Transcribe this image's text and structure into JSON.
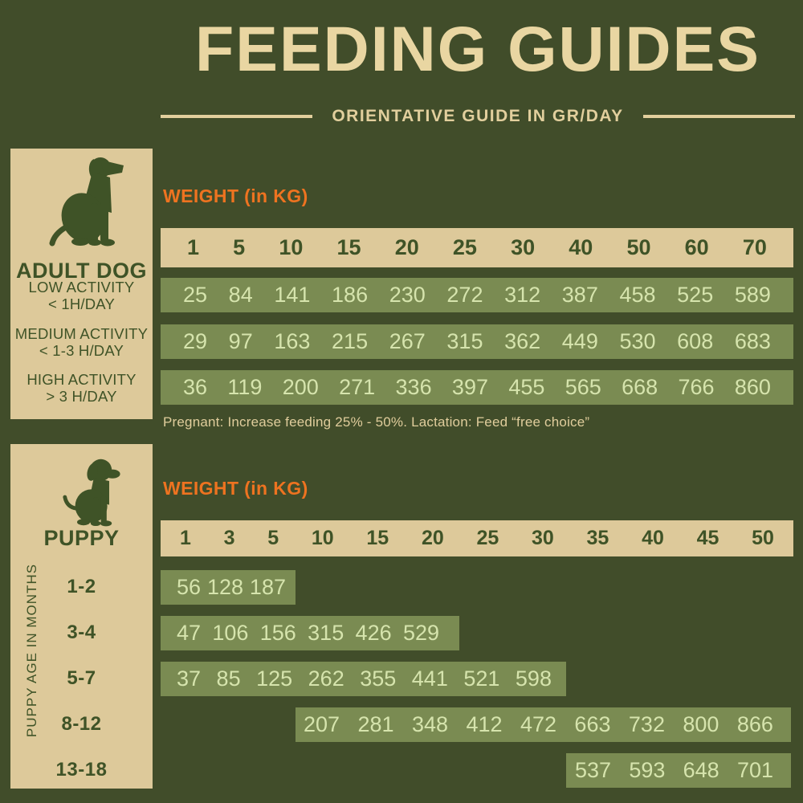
{
  "header": {
    "title": "FEEDING GUIDES",
    "subtitle": "ORIENTATIVE GUIDE IN GR/DAY"
  },
  "colors": {
    "background": "#414d2a",
    "cream_panel": "#ddc99a",
    "title_cream": "#e9d6a2",
    "orange_accent": "#ee7320",
    "row_green": "#7a8b52",
    "dark_green_text": "#3f5327",
    "pale_green_text": "#d6e4ad"
  },
  "adult": {
    "panel_title": "ADULT DOG",
    "icon": "adult-dog-silhouette",
    "weight_label": "WEIGHT (in KG)",
    "weights": [
      "1",
      "5",
      "10",
      "15",
      "20",
      "25",
      "30",
      "40",
      "50",
      "60",
      "70"
    ],
    "rows": [
      {
        "label": "LOW ACTIVITY\n< 1H/DAY",
        "values": [
          "25",
          "84",
          "141",
          "186",
          "230",
          "272",
          "312",
          "387",
          "458",
          "525",
          "589"
        ]
      },
      {
        "label": "MEDIUM ACTIVITY\n< 1-3 H/DAY",
        "values": [
          "29",
          "97",
          "163",
          "215",
          "267",
          "315",
          "362",
          "449",
          "530",
          "608",
          "683"
        ]
      },
      {
        "label": "HIGH ACTIVITY\n> 3 H/DAY",
        "values": [
          "36",
          "119",
          "200",
          "271",
          "336",
          "397",
          "455",
          "565",
          "668",
          "766",
          "860"
        ]
      }
    ],
    "note": "Pregnant: Increase feeding 25% - 50%. Lactation: Feed “free choice”"
  },
  "puppy": {
    "panel_title": "PUPPY",
    "icon": "puppy-silhouette",
    "axis_label": "PUPPY AGE IN MONTHS",
    "weight_label": "WEIGHT (in KG)",
    "weights": [
      "1",
      "3",
      "5",
      "10",
      "15",
      "20",
      "25",
      "30",
      "35",
      "40",
      "45",
      "50"
    ],
    "rows": [
      {
        "age_label": "1-2",
        "values": [
          "56",
          "128",
          "187"
        ]
      },
      {
        "age_label": "3-4",
        "values": [
          "47",
          "106",
          "156",
          "315",
          "426",
          "529"
        ]
      },
      {
        "age_label": "5-7",
        "values": [
          "37",
          "85",
          "125",
          "262",
          "355",
          "441",
          "521",
          "598"
        ]
      },
      {
        "age_label": "8-12",
        "values": [
          "207",
          "281",
          "348",
          "412",
          "472",
          "663",
          "732",
          "800",
          "866"
        ]
      },
      {
        "age_label": "13-18",
        "values": [
          "537",
          "593",
          "648",
          "701"
        ]
      }
    ]
  },
  "chart_data": [
    {
      "type": "table",
      "title": "ADULT DOG feeding guide (gr/day)",
      "xlabel": "WEIGHT (in KG)",
      "columns": [
        1,
        5,
        10,
        15,
        20,
        25,
        30,
        40,
        50,
        60,
        70
      ],
      "rows": [
        {
          "name": "LOW ACTIVITY < 1H/DAY",
          "values": [
            25,
            84,
            141,
            186,
            230,
            272,
            312,
            387,
            458,
            525,
            589
          ]
        },
        {
          "name": "MEDIUM ACTIVITY < 1-3 H/DAY",
          "values": [
            29,
            97,
            163,
            215,
            267,
            315,
            362,
            449,
            530,
            608,
            683
          ]
        },
        {
          "name": "HIGH ACTIVITY > 3 H/DAY",
          "values": [
            36,
            119,
            200,
            271,
            336,
            397,
            455,
            565,
            668,
            766,
            860
          ]
        }
      ],
      "note": "Pregnant: Increase feeding 25% - 50%. Lactation: Feed “free choice”"
    },
    {
      "type": "table",
      "title": "PUPPY feeding guide (gr/day)",
      "xlabel": "WEIGHT (in KG)",
      "ylabel": "PUPPY AGE IN MONTHS",
      "columns": [
        1,
        3,
        5,
        10,
        15,
        20,
        25,
        30,
        35,
        40,
        45,
        50
      ],
      "rows": [
        {
          "name": "1-2",
          "start_weight": 1,
          "values": [
            56,
            128,
            187
          ]
        },
        {
          "name": "3-4",
          "start_weight": 1,
          "values": [
            47,
            106,
            156,
            315,
            426,
            529
          ]
        },
        {
          "name": "5-7",
          "start_weight": 1,
          "values": [
            37,
            85,
            125,
            262,
            355,
            441,
            521,
            598
          ]
        },
        {
          "name": "8-12",
          "start_weight": 10,
          "values": [
            207,
            281,
            348,
            412,
            472,
            663,
            732,
            800,
            866
          ]
        },
        {
          "name": "13-18",
          "start_weight": 35,
          "values": [
            537,
            593,
            648,
            701
          ]
        }
      ]
    }
  ]
}
